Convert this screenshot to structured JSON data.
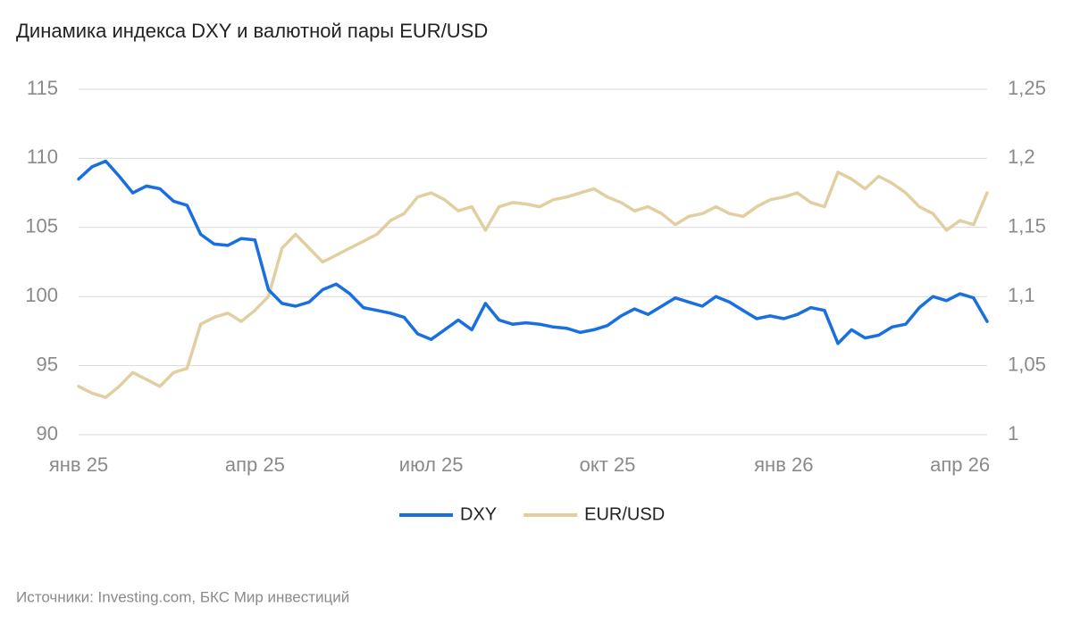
{
  "chart_data": {
    "type": "line",
    "title": "Динамика индекса DXY и валютной пары EUR/USD",
    "source": "Источники: Investing.com, БКС Мир инвестиций",
    "categories": [
      "янв 25",
      null,
      null,
      null,
      null,
      null,
      null,
      null,
      null,
      null,
      null,
      null,
      null,
      "апр 25",
      null,
      null,
      null,
      null,
      null,
      null,
      null,
      null,
      null,
      null,
      null,
      null,
      "июл 25",
      null,
      null,
      null,
      null,
      null,
      null,
      null,
      null,
      null,
      null,
      null,
      null,
      "окт 25",
      null,
      null,
      null,
      null,
      null,
      null,
      null,
      null,
      null,
      null,
      null,
      null,
      "янв 26",
      null,
      null,
      null,
      null,
      null,
      null,
      null,
      null,
      null,
      null,
      null,
      null,
      "апр 26",
      null,
      null
    ],
    "series": [
      {
        "name": "DXY",
        "color": "#1a6fe0",
        "values": [
          108.5,
          109.4,
          109.8,
          108.7,
          107.5,
          108.0,
          107.8,
          106.9,
          106.6,
          104.5,
          103.8,
          103.7,
          104.2,
          104.1,
          100.5,
          99.5,
          99.3,
          99.6,
          100.5,
          100.9,
          100.2,
          99.2,
          99.0,
          98.8,
          98.5,
          97.3,
          96.9,
          97.6,
          98.3,
          97.6,
          99.5,
          98.3,
          98.0,
          98.1,
          98.0,
          97.8,
          97.7,
          97.4,
          97.6,
          97.9,
          98.6,
          99.1,
          98.7,
          99.3,
          99.9,
          99.6,
          99.3,
          100.0,
          99.6,
          99.0,
          98.4,
          98.6,
          98.4,
          98.7,
          99.2,
          99.0,
          96.6,
          97.6,
          97.0,
          97.2,
          97.8,
          98.0,
          99.2,
          100.0,
          99.7,
          100.2,
          99.9,
          98.2
        ]
      },
      {
        "name": "EUR/USD",
        "color": "#e2cfa1",
        "axis": "y2",
        "values": [
          1.035,
          1.03,
          1.027,
          1.035,
          1.045,
          1.04,
          1.035,
          1.045,
          1.048,
          1.08,
          1.085,
          1.088,
          1.082,
          1.09,
          1.1,
          1.135,
          1.145,
          1.135,
          1.125,
          1.13,
          1.135,
          1.14,
          1.145,
          1.155,
          1.16,
          1.172,
          1.175,
          1.17,
          1.162,
          1.165,
          1.148,
          1.165,
          1.168,
          1.167,
          1.165,
          1.17,
          1.172,
          1.175,
          1.178,
          1.172,
          1.168,
          1.162,
          1.165,
          1.16,
          1.152,
          1.158,
          1.16,
          1.165,
          1.16,
          1.158,
          1.165,
          1.17,
          1.172,
          1.175,
          1.168,
          1.165,
          1.19,
          1.185,
          1.178,
          1.187,
          1.182,
          1.175,
          1.165,
          1.16,
          1.148,
          1.155,
          1.152,
          1.175
        ]
      }
    ],
    "ylim": [
      90,
      115
    ],
    "yticks": [
      90,
      95,
      100,
      105,
      110,
      115
    ],
    "y2lim": [
      1,
      1.25
    ],
    "y2ticks": [
      1,
      {
        "value": 1.05,
        "label": "1,05"
      },
      {
        "value": 1.1,
        "label": "1,1"
      },
      {
        "value": 1.15,
        "label": "1,15"
      },
      {
        "value": 1.2,
        "label": "1,2"
      },
      {
        "value": 1.25,
        "label": "1,25"
      }
    ],
    "grid": true,
    "legend": "bottom"
  }
}
